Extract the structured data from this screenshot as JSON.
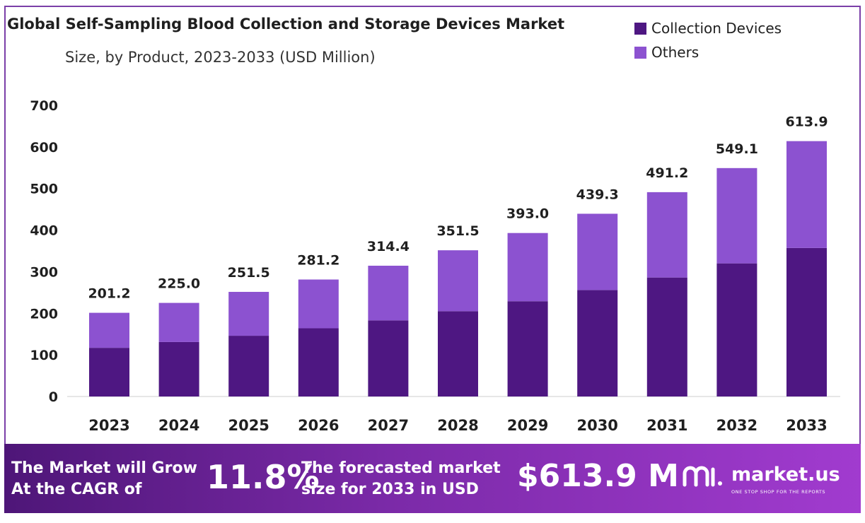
{
  "title": "Global Self-Sampling Blood Collection and Storage Devices Market",
  "subtitle": "Size, by Product, 2023-2033 (USD Million)",
  "colors": {
    "collection": "#4e1782",
    "others": "#8c52d0",
    "banner_start": "#4e1678",
    "banner_end": "#a13bcf"
  },
  "legend": [
    {
      "name": "Collection Devices",
      "color": "#4e1782"
    },
    {
      "name": "Others",
      "color": "#8c52d0"
    }
  ],
  "chart_data": {
    "type": "bar",
    "stacked": true,
    "categories": [
      "2023",
      "2024",
      "2025",
      "2026",
      "2027",
      "2028",
      "2029",
      "2030",
      "2031",
      "2032",
      "2033"
    ],
    "series": [
      {
        "name": "Collection Devices",
        "values": [
          117,
          131,
          146,
          164,
          183,
          205,
          229,
          256,
          286,
          320,
          357
        ]
      },
      {
        "name": "Others",
        "values": [
          84.2,
          94.0,
          105.5,
          117.2,
          131.4,
          146.5,
          164.0,
          183.3,
          205.2,
          229.1,
          256.9
        ]
      }
    ],
    "totals": [
      "201.2",
      "225.0",
      "251.5",
      "281.2",
      "314.4",
      "351.5",
      "393.0",
      "439.3",
      "491.2",
      "549.1",
      "613.9"
    ],
    "yticks": [
      "0",
      "100",
      "200",
      "300",
      "400",
      "500",
      "600",
      "700"
    ],
    "ylim": [
      0,
      700
    ],
    "grid": false,
    "legend_position": "top-right"
  },
  "banner": {
    "cagr_line1": "The Market will Grow",
    "cagr_line2": "At the CAGR of",
    "cagr_value": "11.8%",
    "forecast_line1": "The forecasted market",
    "forecast_line2": "size for 2033 in USD",
    "forecast_value": "$613.9 M",
    "brand_name": "market.us",
    "brand_tagline": "ONE STOP SHOP FOR THE REPORTS",
    "brand_icon": "market-us-logo-icon"
  }
}
